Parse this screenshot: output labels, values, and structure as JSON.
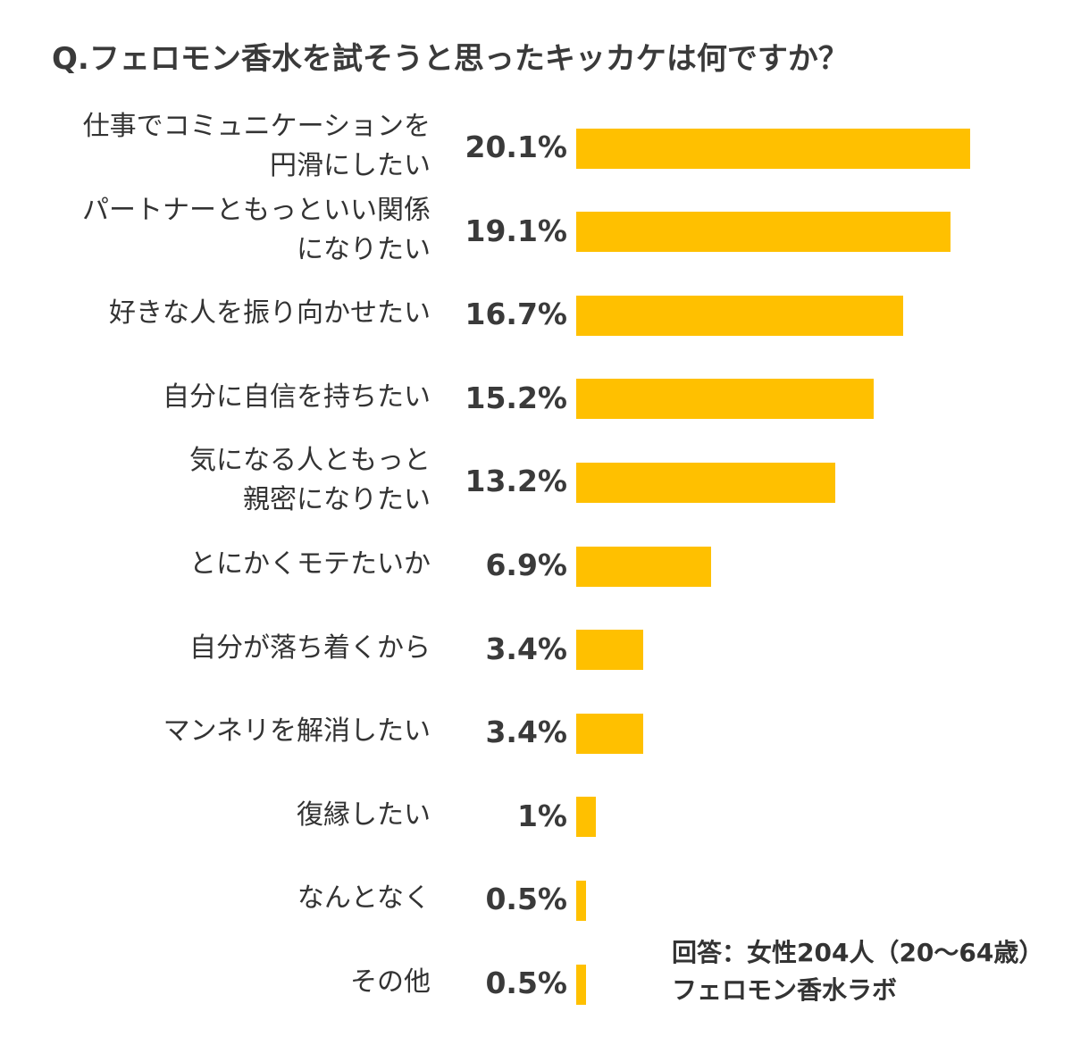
{
  "chart_data": {
    "type": "bar",
    "orientation": "horizontal",
    "title": "Q.フェロモン香水を試そうと思ったキッカケは何ですか？",
    "categories": [
      "仕事でコミュニケーションを\n円滑にしたい",
      "パートナーともっといい関係\nになりたい",
      "好きな人を振り向かせたい",
      "自分に自信を持ちたい",
      "気になる人ともっと\n親密になりたい",
      "とにかくモテたいか",
      "自分が落ち着くから",
      "マンネリを解消したい",
      "復縁したい",
      "なんとなく",
      "その他"
    ],
    "values": [
      20.1,
      19.1,
      16.7,
      15.2,
      13.2,
      6.9,
      3.4,
      3.4,
      1,
      0.5,
      0.5
    ],
    "value_labels": [
      "20.1%",
      "19.1%",
      "16.7%",
      "15.2%",
      "13.2%",
      "6.9%",
      "3.4%",
      "3.4%",
      "1%",
      "0.5%",
      "0.5%"
    ],
    "unit": "%",
    "grid": false,
    "bar_color": "#FFC000",
    "xlabel": "",
    "ylabel": ""
  },
  "notes": {
    "respondents": "回答：女性204人（20～64歳）",
    "source": "フェロモン香水ラボ"
  }
}
